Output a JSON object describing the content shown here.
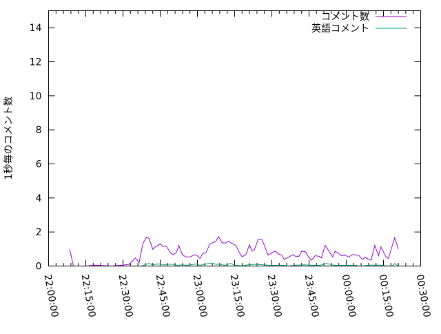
{
  "chart_data": {
    "type": "line",
    "title": "",
    "xlabel": "",
    "ylabel": "1秒毎のコメント数",
    "xlim": [
      "22:00:00",
      "00:30:00"
    ],
    "ylim": [
      0,
      15
    ],
    "x_ticks": [
      "22:00:00",
      "22:15:00",
      "22:30:00",
      "22:45:00",
      "23:00:00",
      "23:15:00",
      "23:30:00",
      "23:45:00",
      "00:00:00",
      "00:15:00",
      "00:30:00"
    ],
    "y_ticks": [
      "0",
      "2",
      "4",
      "6",
      "8",
      "10",
      "12",
      "14"
    ],
    "grid": false,
    "legend_position": "top-right",
    "series": [
      {
        "name": "コメント数",
        "color": "#9400d3",
        "points": [
          [
            "22:08:30",
            1.0
          ],
          [
            "22:10:00",
            0
          ],
          [
            "22:15:00",
            0
          ],
          [
            "22:19:00",
            0.05
          ],
          [
            "22:25:00",
            0
          ],
          [
            "22:30:00",
            0.05
          ],
          [
            "22:32:30",
            0.1
          ],
          [
            "22:35:00",
            0.48
          ],
          [
            "22:36:30",
            0.2
          ],
          [
            "22:38:00",
            1.32
          ],
          [
            "22:39:30",
            1.7
          ],
          [
            "22:40:30",
            1.62
          ],
          [
            "22:42:00",
            0.98
          ],
          [
            "22:43:00",
            1.12
          ],
          [
            "22:45:00",
            1.3
          ],
          [
            "22:46:00",
            1.16
          ],
          [
            "22:47:30",
            1.16
          ],
          [
            "22:49:00",
            0.8
          ],
          [
            "22:50:00",
            0.67
          ],
          [
            "22:51:30",
            0.78
          ],
          [
            "22:52:30",
            1.21
          ],
          [
            "22:54:00",
            0.64
          ],
          [
            "22:55:30",
            0.53
          ],
          [
            "22:57:00",
            0.53
          ],
          [
            "22:58:30",
            0.64
          ],
          [
            "22:59:30",
            0.67
          ],
          [
            "23:01:00",
            0.44
          ],
          [
            "23:02:00",
            0.71
          ],
          [
            "23:03:30",
            0.8
          ],
          [
            "23:05:00",
            1.29
          ],
          [
            "23:06:00",
            1.35
          ],
          [
            "23:07:30",
            1.46
          ],
          [
            "23:08:30",
            1.73
          ],
          [
            "23:10:00",
            1.36
          ],
          [
            "23:11:30",
            1.36
          ],
          [
            "23:12:30",
            1.46
          ],
          [
            "23:14:00",
            1.32
          ],
          [
            "23:15:30",
            1.21
          ],
          [
            "23:17:00",
            0.78
          ],
          [
            "23:18:00",
            0.54
          ],
          [
            "23:19:30",
            0.67
          ],
          [
            "23:21:00",
            1.25
          ],
          [
            "23:22:00",
            0.87
          ],
          [
            "23:23:00",
            0.97
          ],
          [
            "23:24:30",
            1.56
          ],
          [
            "23:26:00",
            1.56
          ],
          [
            "23:27:00",
            1.21
          ],
          [
            "23:28:30",
            0.64
          ],
          [
            "23:30:00",
            0.78
          ],
          [
            "23:31:30",
            0.88
          ],
          [
            "23:32:30",
            0.71
          ],
          [
            "23:34:00",
            0.64
          ],
          [
            "23:35:00",
            0.39
          ],
          [
            "23:36:30",
            0.5
          ],
          [
            "23:38:30",
            0.67
          ],
          [
            "23:39:30",
            0.57
          ],
          [
            "23:41:00",
            0.57
          ],
          [
            "23:42:00",
            0.88
          ],
          [
            "23:43:30",
            0.84
          ],
          [
            "23:45:00",
            0.5
          ],
          [
            "23:46:00",
            0.34
          ],
          [
            "23:47:30",
            0.61
          ],
          [
            "23:49:00",
            0.57
          ],
          [
            "23:50:00",
            0.48
          ],
          [
            "23:51:30",
            1.21
          ],
          [
            "23:53:00",
            0.88
          ],
          [
            "23:54:30",
            0.54
          ],
          [
            "23:55:30",
            0.87
          ],
          [
            "23:57:00",
            0.73
          ],
          [
            "23:58:00",
            0.61
          ],
          [
            "23:59:30",
            0.64
          ],
          [
            "00:01:00",
            0.53
          ],
          [
            "00:02:30",
            0.67
          ],
          [
            "00:04:00",
            0.64
          ],
          [
            "00:05:00",
            0.64
          ],
          [
            "00:06:30",
            0.39
          ],
          [
            "00:07:30",
            0.5
          ],
          [
            "00:08:30",
            0.44
          ],
          [
            "00:10:00",
            0.34
          ],
          [
            "00:11:30",
            1.21
          ],
          [
            "00:13:00",
            0.61
          ],
          [
            "00:14:00",
            1.12
          ],
          [
            "00:16:00",
            0.54
          ],
          [
            "00:17:00",
            0.44
          ],
          [
            "00:19:30",
            1.66
          ],
          [
            "00:21:00",
            1.0
          ]
        ]
      },
      {
        "name": "英語コメント",
        "color": "#009e73",
        "points": [
          [
            "22:08:30",
            0
          ],
          [
            "22:10:00",
            0
          ],
          [
            "22:37:30",
            0
          ],
          [
            "22:40:30",
            0.16
          ],
          [
            "22:42:00",
            0.07
          ],
          [
            "22:43:00",
            0.1
          ],
          [
            "22:45:00",
            0.12
          ],
          [
            "22:46:30",
            0.07
          ],
          [
            "22:48:30",
            0.1
          ],
          [
            "22:50:00",
            0.1
          ],
          [
            "22:52:00",
            0.04
          ],
          [
            "22:54:00",
            0.07
          ],
          [
            "22:55:30",
            0.04
          ],
          [
            "22:57:00",
            0.07
          ],
          [
            "22:59:30",
            0.12
          ],
          [
            "23:01:00",
            0.04
          ],
          [
            "23:03:00",
            0.1
          ],
          [
            "23:05:30",
            0.18
          ],
          [
            "23:07:30",
            0.1
          ],
          [
            "23:09:00",
            0.1
          ],
          [
            "23:11:00",
            0.04
          ],
          [
            "23:13:30",
            0.15
          ],
          [
            "23:15:00",
            0.04
          ],
          [
            "23:18:00",
            0.01
          ],
          [
            "23:20:30",
            0.07
          ],
          [
            "23:23:30",
            0.1
          ],
          [
            "23:26:30",
            0.07
          ],
          [
            "23:29:00",
            0.04
          ],
          [
            "23:33:00",
            0.04
          ],
          [
            "23:35:00",
            0.04
          ],
          [
            "23:36:30",
            0
          ],
          [
            "23:39:00",
            0.04
          ],
          [
            "23:43:00",
            0.07
          ],
          [
            "23:46:30",
            0.04
          ],
          [
            "23:49:30",
            0.04
          ],
          [
            "23:52:00",
            0.16
          ],
          [
            "23:53:30",
            0.1
          ],
          [
            "23:55:00",
            0.04
          ],
          [
            "23:58:00",
            0.04
          ],
          [
            "00:03:00",
            0.04
          ],
          [
            "00:04:00",
            0.04
          ],
          [
            "00:05:00",
            0
          ],
          [
            "00:07:00",
            0.01
          ],
          [
            "00:09:00",
            0.05
          ],
          [
            "00:11:30",
            0.05
          ],
          [
            "00:14:00",
            0.05
          ],
          [
            "00:16:30",
            0
          ],
          [
            "00:18:30",
            0.01
          ],
          [
            "00:19:30",
            0.14
          ],
          [
            "00:21:00",
            0.01
          ]
        ]
      }
    ]
  }
}
